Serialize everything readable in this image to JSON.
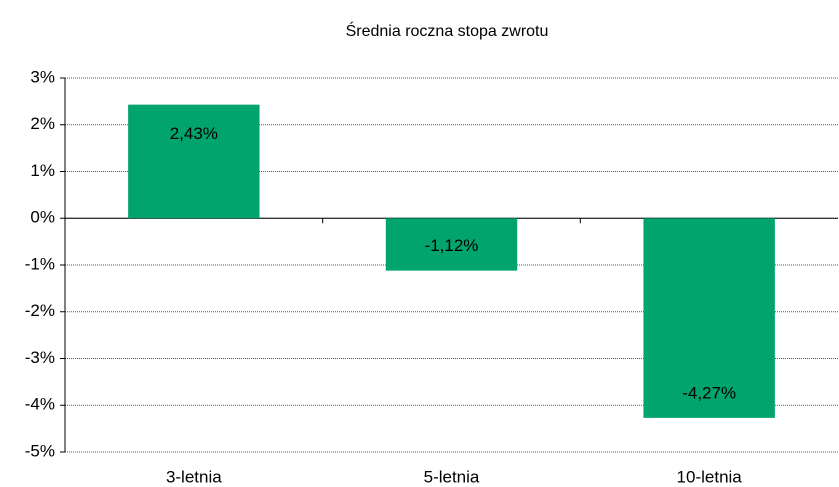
{
  "chart_data": {
    "type": "bar",
    "title": "Średnia roczna stopa zwrotu",
    "categories": [
      "3-letnia",
      "5-letnia",
      "10-letnia"
    ],
    "values": [
      2.43,
      -1.12,
      -4.27
    ],
    "value_labels": [
      "2,43%",
      "-1,12%",
      "-4,27%"
    ],
    "color": "#00a46c",
    "ylim": [
      -5,
      3
    ],
    "yticks": [
      {
        "value": -5,
        "label": "-5%"
      },
      {
        "value": -4,
        "label": "-4%"
      },
      {
        "value": -3,
        "label": "-3%"
      },
      {
        "value": -2,
        "label": "-2%"
      },
      {
        "value": -1,
        "label": "-1%"
      },
      {
        "value": 0,
        "label": "0%"
      },
      {
        "value": 1,
        "label": "1%"
      },
      {
        "value": 2,
        "label": "2%"
      },
      {
        "value": 3,
        "label": "3%"
      }
    ],
    "grid": true
  }
}
